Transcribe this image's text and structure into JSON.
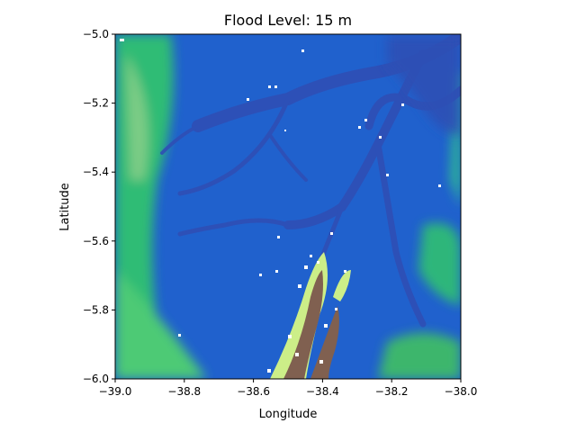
{
  "figure": {
    "title": "Flood Level: 15 m",
    "xlabel": "Longitude",
    "ylabel": "Latitude"
  },
  "chart_data": {
    "type": "heatmap",
    "title": "Flood Level: 15 m",
    "xlabel": "Longitude",
    "ylabel": "Latitude",
    "xlim": [
      -39.0,
      -38.0
    ],
    "ylim": [
      -6.0,
      -5.0
    ],
    "x_ticks": [
      -39.0,
      -38.8,
      -38.6,
      -38.4,
      -38.2,
      -38.0
    ],
    "x_tick_labels": [
      "−39.0",
      "−38.8",
      "−38.6",
      "−38.4",
      "−38.2",
      "−38.0"
    ],
    "y_ticks": [
      -5.0,
      -5.2,
      -5.4,
      -5.6,
      -5.8,
      -6.0
    ],
    "y_tick_labels": [
      "−5.0",
      "−5.2",
      "−5.4",
      "−5.6",
      "−5.8",
      "−6.0"
    ],
    "colormap": "terrain",
    "colormap_stops": [
      "#333399",
      "#0099ff",
      "#33cc66",
      "#ccee88",
      "#806050",
      "#ffffff"
    ],
    "flooded_color": "#2f4fb5",
    "grid": false,
    "legend": "none"
  }
}
